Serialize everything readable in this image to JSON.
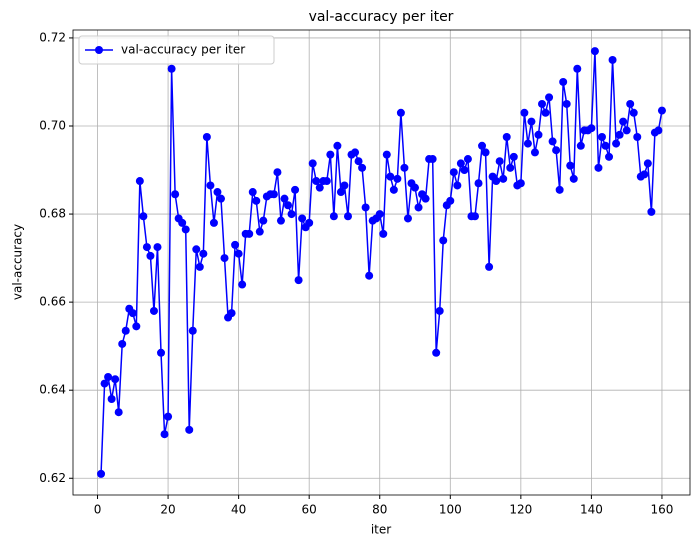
{
  "chart_data": {
    "type": "line",
    "title": "val-accuracy per iter",
    "x_label": "iter",
    "y_label": "val-accuracy",
    "x": [
      1,
      2,
      3,
      4,
      5,
      6,
      7,
      8,
      9,
      10,
      11,
      12,
      13,
      14,
      15,
      16,
      17,
      18,
      19,
      20,
      21,
      22,
      23,
      24,
      25,
      26,
      27,
      28,
      29,
      30,
      31,
      32,
      33,
      34,
      35,
      36,
      37,
      38,
      39,
      40,
      41,
      42,
      43,
      44,
      45,
      46,
      47,
      48,
      49,
      50,
      51,
      52,
      53,
      54,
      55,
      56,
      57,
      58,
      59,
      60,
      61,
      62,
      63,
      64,
      65,
      66,
      67,
      68,
      69,
      70,
      71,
      72,
      73,
      74,
      75,
      76,
      77,
      78,
      79,
      80,
      81,
      82,
      83,
      84,
      85,
      86,
      87,
      88,
      89,
      90,
      91,
      92,
      93,
      94,
      95,
      96,
      97,
      98,
      99,
      100,
      101,
      102,
      103,
      104,
      105,
      106,
      107,
      108,
      109,
      110,
      111,
      112,
      113,
      114,
      115,
      116,
      117,
      118,
      119,
      120,
      121,
      122,
      123,
      124,
      125,
      126,
      127,
      128,
      129,
      130,
      131,
      132,
      133,
      134,
      135,
      136,
      137,
      138,
      139,
      140,
      141,
      142,
      143,
      144,
      145,
      146,
      147,
      148,
      149,
      150,
      151,
      152,
      153,
      154,
      155,
      156,
      157,
      158,
      159,
      160
    ],
    "series": [
      {
        "name": "val-accuracy per iter",
        "color": "#0000ff",
        "values": [
          0.621,
          0.6415,
          0.643,
          0.638,
          0.6425,
          0.635,
          0.6505,
          0.6535,
          0.6585,
          0.6575,
          0.6545,
          0.6875,
          0.6795,
          0.6725,
          0.6705,
          0.658,
          0.6725,
          0.6485,
          0.63,
          0.634,
          0.713,
          0.6845,
          0.679,
          0.678,
          0.6765,
          0.631,
          0.6535,
          0.672,
          0.668,
          0.671,
          0.6975,
          0.6865,
          0.678,
          0.685,
          0.6835,
          0.67,
          0.6565,
          0.6575,
          0.673,
          0.671,
          0.664,
          0.6755,
          0.6755,
          0.685,
          0.683,
          0.676,
          0.6785,
          0.684,
          0.6845,
          0.6845,
          0.6895,
          0.6785,
          0.6835,
          0.682,
          0.68,
          0.6855,
          0.665,
          0.679,
          0.677,
          0.678,
          0.6915,
          0.6875,
          0.686,
          0.6875,
          0.6875,
          0.6935,
          0.6795,
          0.6955,
          0.685,
          0.6865,
          0.6795,
          0.6935,
          0.694,
          0.692,
          0.6905,
          0.6815,
          0.666,
          0.6785,
          0.679,
          0.68,
          0.6755,
          0.6935,
          0.6885,
          0.6855,
          0.688,
          0.703,
          0.6905,
          0.679,
          0.687,
          0.686,
          0.6815,
          0.6845,
          0.6835,
          0.6925,
          0.6925,
          0.6485,
          0.658,
          0.674,
          0.682,
          0.683,
          0.6895,
          0.6865,
          0.6915,
          0.69,
          0.6925,
          0.6795,
          0.6795,
          0.687,
          0.6955,
          0.694,
          0.668,
          0.6885,
          0.6875,
          0.692,
          0.688,
          0.6975,
          0.6905,
          0.693,
          0.6865,
          0.687,
          0.703,
          0.696,
          0.701,
          0.694,
          0.698,
          0.705,
          0.703,
          0.7065,
          0.6965,
          0.6945,
          0.6855,
          0.71,
          0.705,
          0.691,
          0.688,
          0.713,
          0.6955,
          0.699,
          0.699,
          0.6995,
          0.717,
          0.6905,
          0.6975,
          0.6955,
          0.693,
          0.715,
          0.696,
          0.698,
          0.701,
          0.699,
          0.705,
          0.703,
          0.6975,
          0.6885,
          0.689,
          0.6915,
          0.6805,
          0.6985,
          0.699,
          0.7035
        ]
      }
    ],
    "xlim": [
      -6.95,
      167.95
    ],
    "xticks": [
      0,
      20,
      40,
      60,
      80,
      100,
      120,
      140,
      160
    ],
    "ylim": [
      0.6162,
      0.7218
    ],
    "yticks": [
      0.62,
      0.64,
      0.66,
      0.68,
      {
        "value": 0.7,
        "label": "0.70"
      },
      0.72
    ],
    "grid": true,
    "legend": "upper left"
  }
}
